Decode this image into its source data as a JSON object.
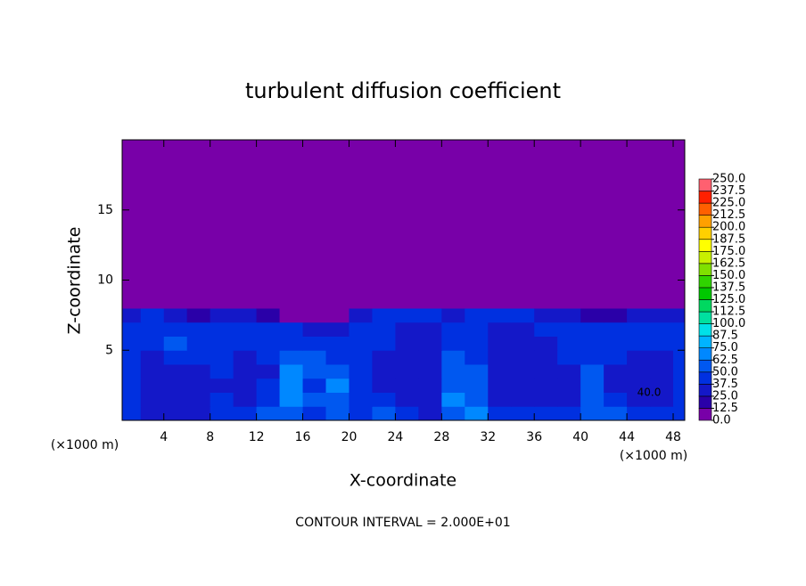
{
  "chart_data": {
    "type": "contour",
    "title": "turbulent diffusion coefficient",
    "xlabel": "X-coordinate",
    "ylabel": "Z-coordinate",
    "x_unit_left": "(×1000 m)",
    "x_unit_right": "(×1000 m)",
    "footer": "CONTOUR INTERVAL = 2.000E+01",
    "contour_label": "40.0",
    "xlim": [
      0.4,
      49
    ],
    "ylim": [
      0,
      20
    ],
    "xticks": [
      4,
      8,
      12,
      16,
      20,
      24,
      28,
      32,
      36,
      40,
      44,
      48
    ],
    "yticks": [
      5,
      10,
      15
    ],
    "x_edges": [
      0,
      2,
      4,
      6,
      8,
      10,
      12,
      14,
      16,
      18,
      20,
      22,
      24,
      26,
      28,
      30,
      32,
      34,
      36,
      38,
      40,
      42,
      44,
      46,
      48,
      50
    ],
    "y_edges": [
      0,
      1,
      2,
      3,
      4,
      5,
      6,
      7,
      8,
      9,
      20
    ],
    "z": [
      [
        45,
        30,
        30,
        30,
        45,
        40,
        55,
        60,
        40,
        50,
        45,
        50,
        40,
        35,
        60,
        70,
        45,
        40,
        40,
        45,
        60,
        50,
        45,
        40,
        45
      ],
      [
        40,
        25,
        25,
        25,
        40,
        35,
        45,
        65,
        50,
        60,
        45,
        40,
        35,
        30,
        65,
        60,
        30,
        25,
        30,
        35,
        55,
        40,
        30,
        30,
        40
      ],
      [
        40,
        25,
        25,
        30,
        35,
        30,
        40,
        70,
        45,
        65,
        40,
        35,
        30,
        30,
        60,
        55,
        25,
        25,
        25,
        35,
        50,
        35,
        25,
        30,
        40
      ],
      [
        45,
        25,
        25,
        35,
        40,
        30,
        35,
        65,
        50,
        55,
        40,
        30,
        25,
        25,
        55,
        50,
        25,
        25,
        25,
        35,
        50,
        35,
        25,
        30,
        40
      ],
      [
        45,
        35,
        40,
        40,
        45,
        35,
        40,
        55,
        50,
        45,
        40,
        35,
        25,
        25,
        50,
        45,
        25,
        25,
        30,
        40,
        45,
        40,
        30,
        35,
        40
      ],
      [
        40,
        45,
        50,
        45,
        40,
        40,
        45,
        45,
        45,
        40,
        45,
        40,
        30,
        30,
        40,
        40,
        30,
        30,
        35,
        45,
        40,
        45,
        40,
        40,
        45
      ],
      [
        40,
        45,
        40,
        40,
        45,
        45,
        40,
        40,
        35,
        30,
        45,
        40,
        35,
        35,
        40,
        40,
        35,
        35,
        40,
        45,
        40,
        40,
        40,
        40,
        45
      ],
      [
        35,
        40,
        30,
        20,
        30,
        35,
        20,
        10,
        5,
        10,
        30,
        40,
        40,
        40,
        35,
        40,
        40,
        40,
        35,
        30,
        15,
        20,
        25,
        30,
        30
      ],
      [
        0,
        0,
        0,
        0,
        0,
        0,
        0,
        0,
        0,
        0,
        5,
        10,
        10,
        5,
        5,
        5,
        10,
        10,
        5,
        0,
        0,
        0,
        0,
        0,
        0
      ],
      [
        0,
        0,
        0,
        0,
        0,
        0,
        0,
        0,
        0,
        0,
        0,
        0,
        0,
        0,
        0,
        0,
        0,
        0,
        0,
        0,
        0,
        0,
        0,
        0,
        0
      ]
    ],
    "levels": [
      {
        "value": 0,
        "label": "0.0"
      },
      {
        "value": 12.5,
        "label": "12.5"
      },
      {
        "value": 25,
        "label": "25.0"
      },
      {
        "value": 37.5,
        "label": "37.5"
      },
      {
        "value": 50,
        "label": "50.0"
      },
      {
        "value": 62.5,
        "label": "62.5"
      },
      {
        "value": 75,
        "label": "75.0"
      },
      {
        "value": 87.5,
        "label": "87.5"
      },
      {
        "value": 100,
        "label": "100.0"
      },
      {
        "value": 112.5,
        "label": "112.5"
      },
      {
        "value": 125,
        "label": "125.0"
      },
      {
        "value": 137.5,
        "label": "137.5"
      },
      {
        "value": 150,
        "label": "150.0"
      },
      {
        "value": 162.5,
        "label": "162.5"
      },
      {
        "value": 175,
        "label": "175.0"
      },
      {
        "value": 187.5,
        "label": "187.5"
      },
      {
        "value": 200,
        "label": "200.0"
      },
      {
        "value": 212.5,
        "label": "212.5"
      },
      {
        "value": 225,
        "label": "225.0"
      },
      {
        "value": 237.5,
        "label": "237.5"
      },
      {
        "value": 250,
        "label": "250.0"
      }
    ],
    "colors": [
      "#7800a8",
      "#2a00a8",
      "#1418c8",
      "#0030e0",
      "#0058f0",
      "#0088ff",
      "#00b4ff",
      "#00e0e8",
      "#00e0a0",
      "#00d860",
      "#00c800",
      "#30d400",
      "#80e000",
      "#c8f000",
      "#ffff00",
      "#ffd000",
      "#ffa000",
      "#ff6000",
      "#ff2000",
      "#ff6070"
    ]
  }
}
